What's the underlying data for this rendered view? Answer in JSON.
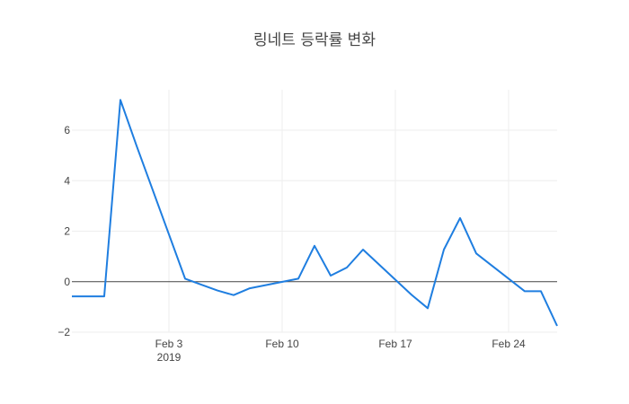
{
  "chart_data": {
    "type": "line",
    "title": "링네트 등락률 변화",
    "xlabel": "",
    "ylabel": "",
    "x": [
      "2019-01-28",
      "2019-01-29",
      "2019-01-30",
      "2019-01-31",
      "2019-02-01",
      "2019-02-04",
      "2019-02-05",
      "2019-02-06",
      "2019-02-07",
      "2019-02-08",
      "2019-02-11",
      "2019-02-12",
      "2019-02-13",
      "2019-02-14",
      "2019-02-15",
      "2019-02-18",
      "2019-02-19",
      "2019-02-20",
      "2019-02-21",
      "2019-02-22",
      "2019-02-25",
      "2019-02-26",
      "2019-02-27"
    ],
    "series": [
      {
        "values": [
          -0.58,
          -0.58,
          -0.58,
          7.2,
          5.38,
          0.12,
          -0.12,
          -0.35,
          -0.53,
          -0.26,
          0.12,
          1.42,
          0.24,
          0.56,
          1.27,
          -0.52,
          -1.05,
          1.27,
          2.52,
          1.12,
          -0.38,
          -0.38,
          -1.75
        ],
        "color": "#1f7ee0"
      }
    ],
    "xlim": [
      "2019-01-28",
      "2019-02-27"
    ],
    "ylim": [
      -2.0,
      7.6
    ],
    "x_ticks": [
      {
        "date": "2019-02-03",
        "label": "Feb 3",
        "sublabel": "2019"
      },
      {
        "date": "2019-02-10",
        "label": "Feb 10",
        "sublabel": ""
      },
      {
        "date": "2019-02-17",
        "label": "Feb 17",
        "sublabel": ""
      },
      {
        "date": "2019-02-24",
        "label": "Feb 24",
        "sublabel": ""
      }
    ],
    "y_ticks": [
      {
        "value": -2,
        "label": "−2"
      },
      {
        "value": 0,
        "label": "0"
      },
      {
        "value": 2,
        "label": "2"
      },
      {
        "value": 4,
        "label": "4"
      },
      {
        "value": 6,
        "label": "6"
      }
    ],
    "grid": true,
    "zero_line": true,
    "legend": "none",
    "colors": {
      "line": "#1f7ee0",
      "grid": "#eeeeee",
      "zero_line": "#444444",
      "text": "#444444"
    }
  }
}
